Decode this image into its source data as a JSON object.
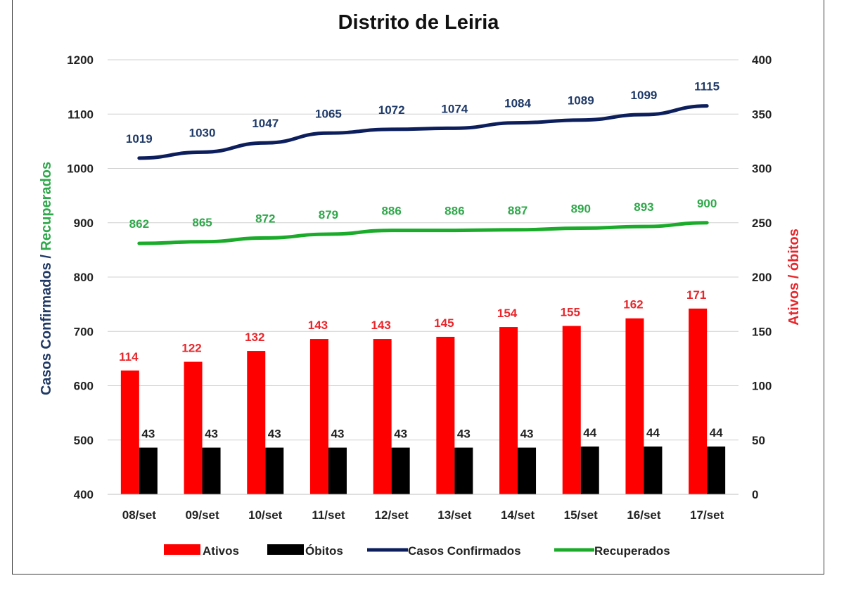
{
  "chart_data": {
    "type": "bar",
    "title": "Distrito de Leiria",
    "categories": [
      "08/set",
      "09/set",
      "10/set",
      "11/set",
      "12/set",
      "13/set",
      "14/set",
      "15/set",
      "16/set",
      "17/set"
    ],
    "y_left": {
      "label_part1": "Casos Confirmados",
      "label_sep": " / ",
      "label_part2": "Recuperados",
      "ylim": [
        400,
        1200
      ],
      "ticks": [
        400,
        500,
        600,
        700,
        800,
        900,
        1000,
        1100,
        1200
      ]
    },
    "y_right": {
      "label_part1": "Ativos",
      "label_sep": " / ",
      "label_part2": "óbitos",
      "ylim": [
        0,
        400
      ],
      "ticks": [
        0,
        50,
        100,
        150,
        200,
        250,
        300,
        350,
        400
      ]
    },
    "series": [
      {
        "name": "Ativos",
        "kind": "bar",
        "axis": "right",
        "color": "#ff0000",
        "label_color": "#e8262b",
        "values": [
          114,
          122,
          132,
          143,
          143,
          145,
          154,
          155,
          162,
          171
        ]
      },
      {
        "name": "Óbitos",
        "kind": "bar",
        "axis": "right",
        "color": "#000000",
        "label_color": "#222222",
        "values": [
          43,
          43,
          43,
          43,
          43,
          43,
          43,
          44,
          44,
          44
        ]
      },
      {
        "name": "Casos Confirmados",
        "kind": "line",
        "axis": "left",
        "color": "#0c1f5c",
        "label_color": "#1f3a68",
        "values": [
          1019,
          1030,
          1047,
          1065,
          1072,
          1074,
          1084,
          1089,
          1099,
          1115
        ]
      },
      {
        "name": "Recuperados",
        "kind": "line",
        "axis": "left",
        "color": "#1aab2a",
        "label_color": "#2ea84a",
        "values": [
          862,
          865,
          872,
          879,
          886,
          886,
          887,
          890,
          893,
          900
        ]
      }
    ],
    "grid": true,
    "legend_position": "bottom",
    "label_colors": {
      "left_part1": "#1f3864",
      "left_part2": "#2ea84a",
      "right": "#e8262b"
    }
  }
}
